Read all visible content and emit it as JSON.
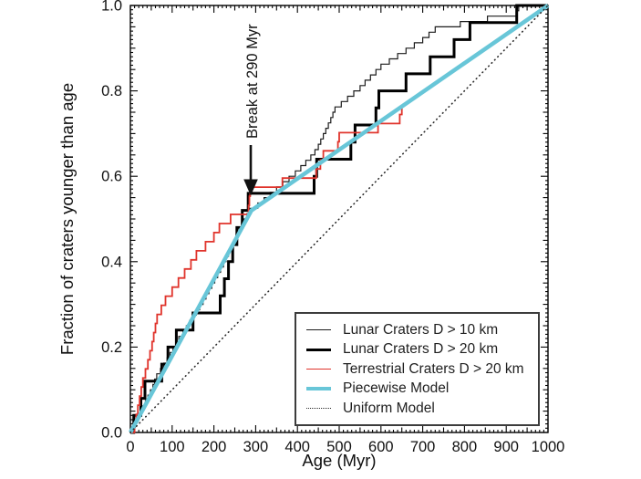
{
  "chart_data": {
    "type": "line",
    "title": "",
    "xlabel": "Age (Myr)",
    "ylabel": "Fraction of craters younger than age",
    "xlim": [
      0,
      1000
    ],
    "ylim": [
      0,
      1
    ],
    "grid": false,
    "legend_position": "lower right",
    "x_major_ticks": [
      0,
      100,
      200,
      300,
      400,
      500,
      600,
      700,
      800,
      900,
      1000
    ],
    "x_tick_labels": [
      "0",
      "100",
      "200",
      "300",
      "400",
      "500",
      "600",
      "700",
      "800",
      "900",
      "1000"
    ],
    "x_minor_step": 10,
    "x_medium_step": 50,
    "y_major_ticks": [
      0,
      0.2,
      0.4,
      0.6,
      0.8,
      1.0
    ],
    "y_tick_labels": [
      "0.0",
      "0.2",
      "0.4",
      "0.6",
      "0.8",
      "1.0"
    ],
    "y_minor_step": 0.01,
    "y_medium_step": 0.05,
    "axis_color": "#000000",
    "background_color": "#ffffff",
    "annotation": {
      "text": "Break at 290 Myr",
      "break_age_myr": 290,
      "points_to": [
        290,
        0.56
      ]
    },
    "series": [
      {
        "id": "lunar-d10",
        "name": "Lunar Craters D > 10 km",
        "type": "step",
        "style": {
          "color": "#1c1c1c",
          "width": 1.2
        },
        "total": 80,
        "extend_to_xmax": true,
        "ages": [
          5,
          12,
          18,
          24,
          30,
          36,
          42,
          48,
          54,
          58,
          63,
          72,
          80,
          88,
          95,
          102,
          109,
          116,
          126,
          134,
          142,
          150,
          158,
          166,
          174,
          181,
          188,
          195,
          202,
          209,
          216,
          223,
          229,
          235,
          241,
          247,
          253,
          260,
          266,
          272,
          279,
          286,
          305,
          320,
          335,
          350,
          365,
          380,
          395,
          408,
          420,
          432,
          442,
          450,
          456,
          462,
          468,
          474,
          480,
          485,
          490,
          505,
          520,
          535,
          550,
          562,
          575,
          588,
          600,
          620,
          640,
          660,
          680,
          700,
          715,
          730,
          790,
          855,
          925,
          930
        ]
      },
      {
        "id": "lunar-d20",
        "name": "Lunar Craters D > 20 km",
        "type": "step",
        "style": {
          "color": "#000000",
          "width": 3
        },
        "total": 25,
        "extend_to_xmax": true,
        "ages": [
          8,
          25,
          35,
          75,
          90,
          110,
          150,
          215,
          225,
          235,
          245,
          255,
          268,
          282,
          440,
          446,
          528,
          538,
          588,
          595,
          660,
          718,
          775,
          813,
          925
        ]
      },
      {
        "id": "terrestrial-d20",
        "name": "Terrestrial Craters D > 20 km",
        "type": "step",
        "style": {
          "color": "#e0342c",
          "width": 1.8
        },
        "total": 47,
        "extend_to_xmax": false,
        "ages": [
          10,
          14,
          18,
          22,
          26,
          30,
          36,
          42,
          47,
          52,
          56,
          60,
          64,
          74,
          84,
          100,
          115,
          130,
          145,
          158,
          180,
          200,
          213,
          240,
          283,
          285,
          287,
          364,
          445,
          455,
          462,
          497,
          500,
          593,
          645,
          650
        ]
      },
      {
        "id": "piecewise-model",
        "name": "Piecewise Model",
        "type": "line",
        "style": {
          "color": "#68c6d8",
          "width": 4.5
        },
        "points": [
          [
            0,
            0
          ],
          [
            290,
            0.52
          ],
          [
            1000,
            1.0
          ]
        ]
      },
      {
        "id": "uniform-model",
        "name": "Uniform Model",
        "type": "line",
        "style": {
          "color": "#2a2a2a",
          "width": 1.6,
          "dash": "0.6 4.2"
        },
        "points": [
          [
            0,
            0
          ],
          [
            1000,
            1.0
          ]
        ]
      }
    ]
  }
}
